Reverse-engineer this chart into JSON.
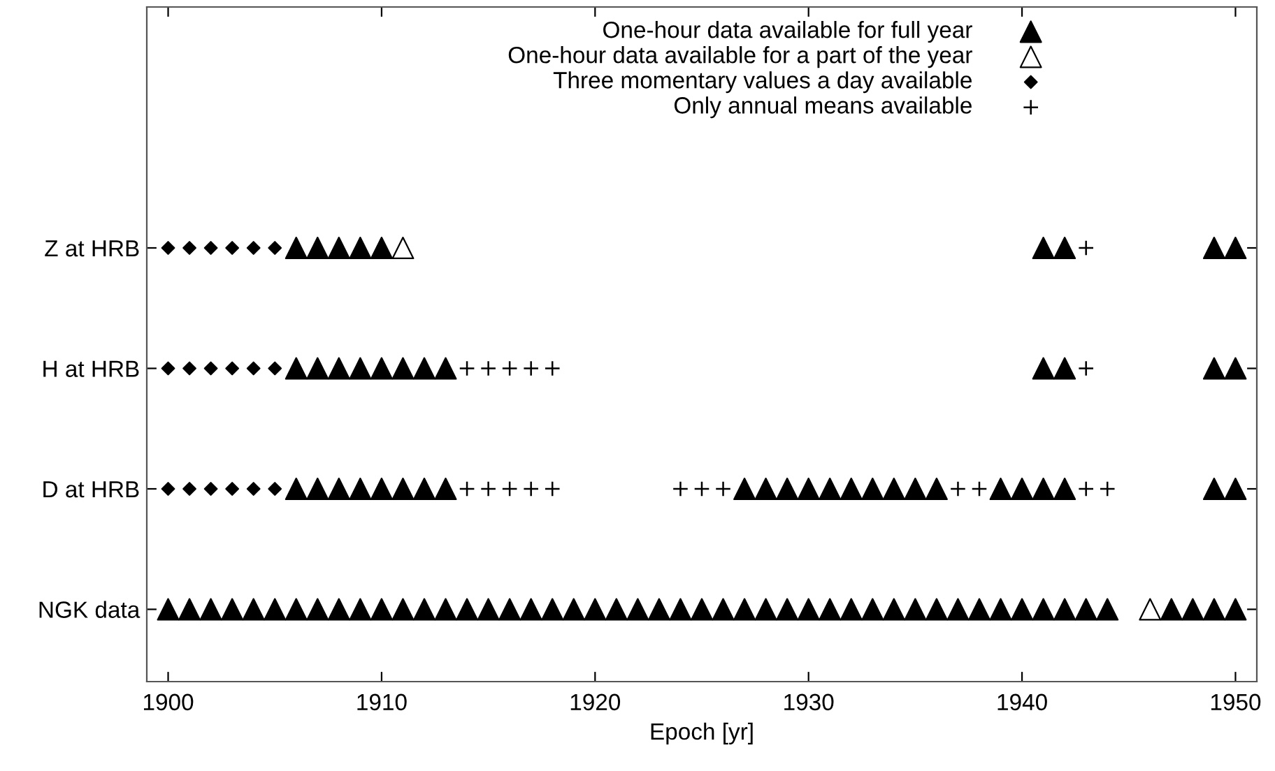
{
  "chart_data": {
    "type": "scatter",
    "orientation": "horizontal",
    "xlabel": "Epoch [yr]",
    "xlim": [
      1899,
      1951
    ],
    "xticks": [
      1900,
      1910,
      1920,
      1930,
      1940,
      1950
    ],
    "categories": [
      "Z at HRB",
      "H at HRB",
      "D at HRB",
      "NGK data"
    ],
    "grid": false,
    "legend": "top right",
    "series": [
      {
        "name": "One-hour data available for full year",
        "color": "#000000",
        "marker": "triangle",
        "values": [
          1906,
          1907,
          1908,
          1909,
          1910,
          1941,
          1942,
          1949,
          1950,
          1906,
          1907,
          1908,
          1909,
          1910,
          1911,
          1912,
          1913,
          1941,
          1942,
          1949,
          1950,
          1906,
          1907,
          1908,
          1909,
          1910,
          1911,
          1912,
          1913,
          1927,
          1928,
          1929,
          1930,
          1931,
          1932,
          1933,
          1934,
          1935,
          1936,
          1939,
          1940,
          1941,
          1942,
          1949,
          1950,
          1900,
          1901,
          1902,
          1903,
          1904,
          1905,
          1906,
          1907,
          1908,
          1909,
          1910,
          1911,
          1912,
          1913,
          1914,
          1915,
          1916,
          1917,
          1918,
          1919,
          1920,
          1921,
          1922,
          1923,
          1924,
          1925,
          1926,
          1927,
          1928,
          1929,
          1930,
          1931,
          1932,
          1933,
          1934,
          1935,
          1936,
          1937,
          1938,
          1939,
          1940,
          1941,
          1942,
          1943,
          1944,
          1947,
          1948,
          1949,
          1950
        ],
        "x": [
          "Z at HRB",
          "Z at HRB",
          "Z at HRB",
          "Z at HRB",
          "Z at HRB",
          "Z at HRB",
          "Z at HRB",
          "Z at HRB",
          "Z at HRB",
          "H at HRB",
          "H at HRB",
          "H at HRB",
          "H at HRB",
          "H at HRB",
          "H at HRB",
          "H at HRB",
          "H at HRB",
          "H at HRB",
          "H at HRB",
          "H at HRB",
          "H at HRB",
          "D at HRB",
          "D at HRB",
          "D at HRB",
          "D at HRB",
          "D at HRB",
          "D at HRB",
          "D at HRB",
          "D at HRB",
          "D at HRB",
          "D at HRB",
          "D at HRB",
          "D at HRB",
          "D at HRB",
          "D at HRB",
          "D at HRB",
          "D at HRB",
          "D at HRB",
          "D at HRB",
          "D at HRB",
          "D at HRB",
          "D at HRB",
          "D at HRB",
          "D at HRB",
          "D at HRB",
          "NGK data",
          "NGK data",
          "NGK data",
          "NGK data",
          "NGK data",
          "NGK data",
          "NGK data",
          "NGK data",
          "NGK data",
          "NGK data",
          "NGK data",
          "NGK data",
          "NGK data",
          "NGK data",
          "NGK data",
          "NGK data",
          "NGK data",
          "NGK data",
          "NGK data",
          "NGK data",
          "NGK data",
          "NGK data",
          "NGK data",
          "NGK data",
          "NGK data",
          "NGK data",
          "NGK data",
          "NGK data",
          "NGK data",
          "NGK data",
          "NGK data",
          "NGK data",
          "NGK data",
          "NGK data",
          "NGK data",
          "NGK data",
          "NGK data",
          "NGK data",
          "NGK data",
          "NGK data",
          "NGK data",
          "NGK data",
          "NGK data",
          "NGK data",
          "NGK data",
          "NGK data",
          "NGK data",
          "NGK data",
          "NGK data"
        ]
      },
      {
        "name": "One-hour data available for a part of the year",
        "color": "#ffffff",
        "marker": "triangle",
        "values": [
          1911,
          1946
        ],
        "x": [
          "Z at HRB",
          "NGK data"
        ]
      },
      {
        "name": "Three momentary values a day available",
        "color": "#000000",
        "marker": "diamond",
        "values": [
          1900,
          1901,
          1902,
          1903,
          1904,
          1905,
          1900,
          1901,
          1902,
          1903,
          1904,
          1905,
          1900,
          1901,
          1902,
          1903,
          1904,
          1905
        ],
        "x": [
          "Z at HRB",
          "Z at HRB",
          "Z at HRB",
          "Z at HRB",
          "Z at HRB",
          "Z at HRB",
          "H at HRB",
          "H at HRB",
          "H at HRB",
          "H at HRB",
          "H at HRB",
          "H at HRB",
          "D at HRB",
          "D at HRB",
          "D at HRB",
          "D at HRB",
          "D at HRB",
          "D at HRB"
        ]
      },
      {
        "name": "Only annual means available",
        "color": "#000000",
        "marker": "cross",
        "values": [
          1943,
          1914,
          1915,
          1916,
          1917,
          1918,
          1943,
          1914,
          1915,
          1916,
          1917,
          1918,
          1924,
          1925,
          1926,
          1937,
          1938,
          1943,
          1944
        ],
        "x": [
          "Z at HRB",
          "H at HRB",
          "H at HRB",
          "H at HRB",
          "H at HRB",
          "H at HRB",
          "H at HRB",
          "D at HRB",
          "D at HRB",
          "D at HRB",
          "D at HRB",
          "D at HRB",
          "D at HRB",
          "D at HRB",
          "D at HRB",
          "D at HRB",
          "D at HRB",
          "D at HRB",
          "D at HRB"
        ]
      }
    ]
  }
}
